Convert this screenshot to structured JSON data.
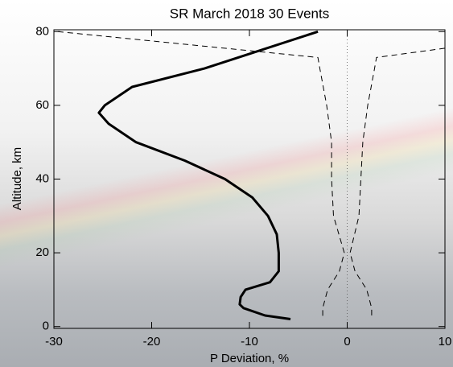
{
  "chart_data": {
    "type": "line",
    "title": "SR March 2018 30 Events",
    "x_label": "P Deviation, %",
    "y_label": "Altitude, km",
    "xlim": [
      -30,
      10
    ],
    "ylim": [
      -0.5,
      80.5
    ],
    "xticks": [
      -30,
      -20,
      -10,
      0,
      10
    ],
    "yticks": [
      0,
      20,
      40,
      60,
      80
    ],
    "zero_line": true,
    "series": [
      {
        "color": "#000000",
        "style": "solid",
        "x": [
          -3,
          -14.6,
          -22,
          -24.8,
          -25.4,
          -24.4,
          -21.6,
          -16.6,
          -12.5,
          -9.7,
          -8.1,
          -7.2,
          -7.0,
          -7.0,
          -7.9,
          -10.4,
          -10.9,
          -11,
          -10.6,
          -8.4,
          -5.8
        ],
        "values": [
          80,
          70,
          65,
          60,
          58,
          55,
          50,
          45,
          40,
          35,
          30,
          25,
          20,
          15,
          12,
          10,
          8,
          6,
          5,
          3,
          2
        ]
      },
      {
        "color": "#000000",
        "style": "dashed",
        "x": [
          -29.6,
          -3.0,
          -2.8,
          -2.1,
          -1.6,
          -1.6,
          -1.4,
          -0.3,
          -0.8,
          -2,
          -2.5,
          -2.5
        ],
        "values": [
          80,
          73,
          70,
          60,
          50,
          40,
          30,
          20,
          15,
          10,
          5,
          2
        ]
      },
      {
        "color": "#000000",
        "style": "dashed",
        "x": [
          10,
          3,
          2.8,
          2.1,
          1.6,
          1.4,
          1.2,
          0.3,
          0.8,
          2,
          2.5,
          2.5
        ],
        "values": [
          75.5,
          73,
          70,
          60,
          50,
          40,
          30,
          20,
          15,
          10,
          5,
          2
        ]
      }
    ]
  }
}
